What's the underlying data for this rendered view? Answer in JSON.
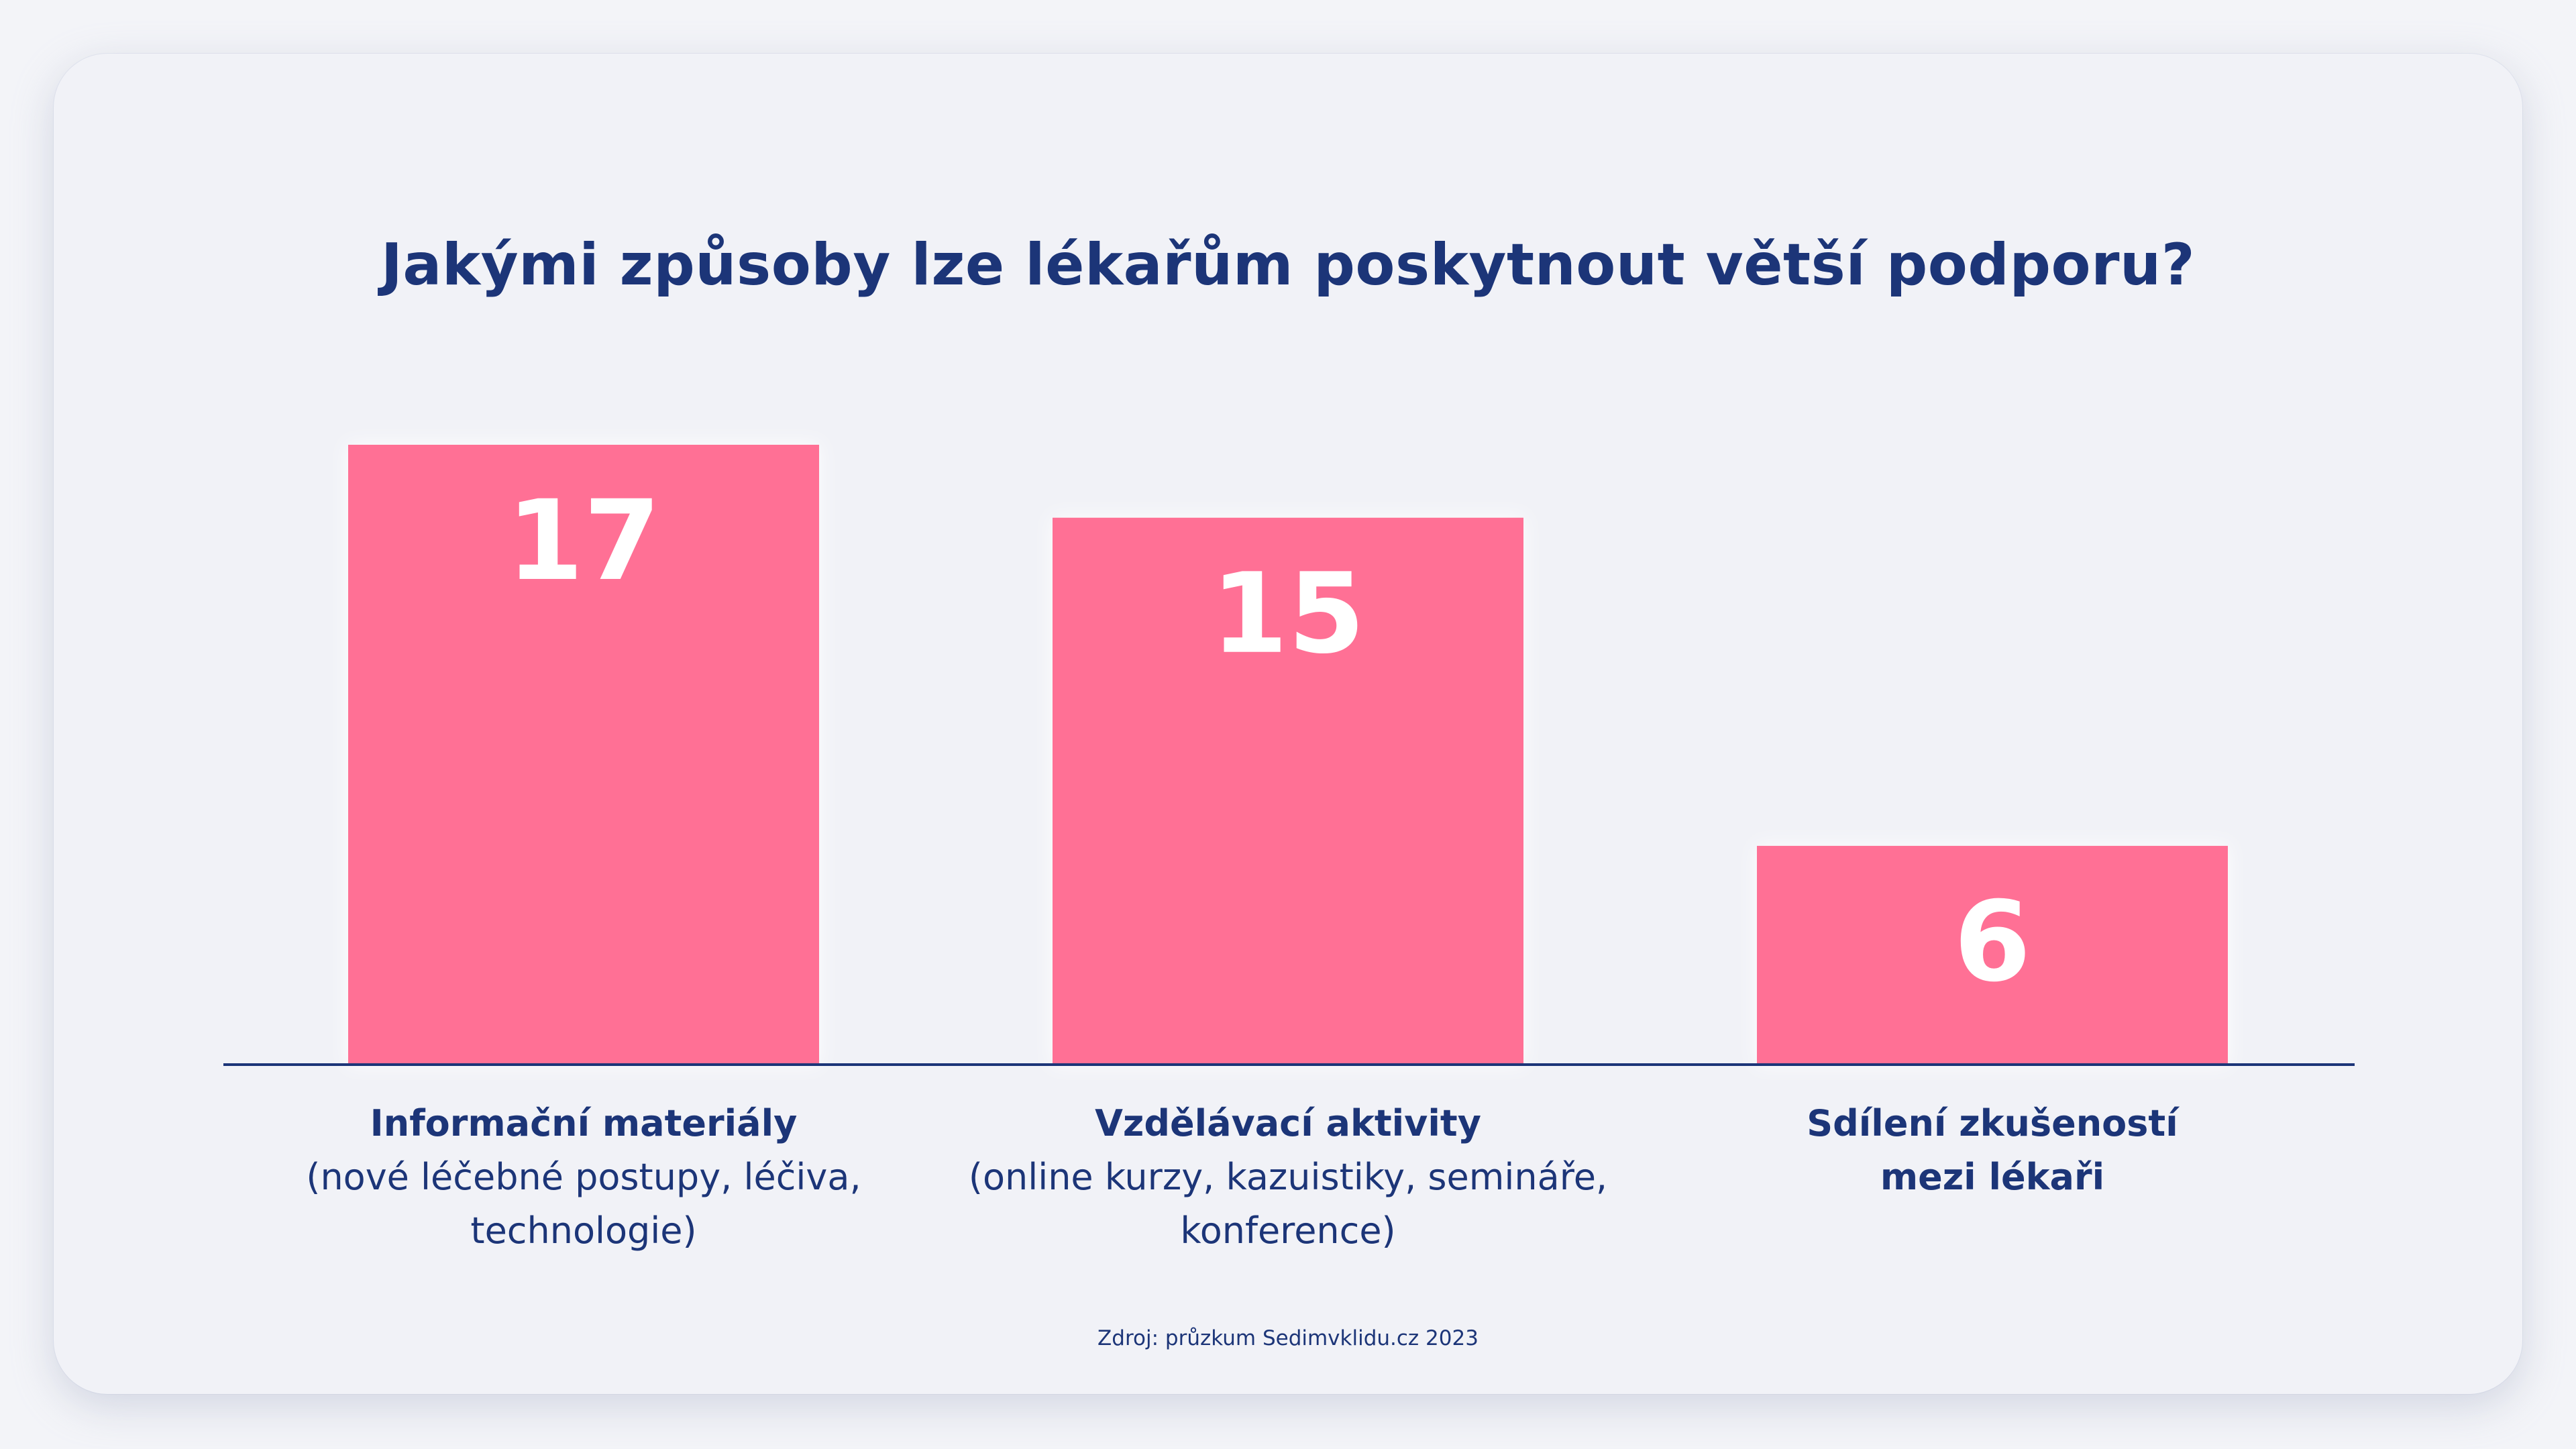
{
  "chart_data": {
    "type": "bar",
    "title": "Jakými způsoby lze lékařům poskytnout větší podporu?",
    "categories": [
      "Informační materiály (nové léčebné postupy, léčiva, technologie)",
      "Vzdělávací aktivity (online kurzy, kazuistiky, semináře, konference)",
      "Sdílení zkušeností mezi lékaři"
    ],
    "category_lines": [
      {
        "bold": [
          "Informační materiály"
        ],
        "regular": [
          "(nové léčebné postupy, léčiva,",
          "technologie)"
        ]
      },
      {
        "bold": [
          "Vzdělávací aktivity"
        ],
        "regular": [
          "(online kurzy, kazuistiky, semináře,",
          "konference)"
        ]
      },
      {
        "bold": [
          "Sdílení zkušeností",
          "mezi lékaři"
        ],
        "regular": []
      }
    ],
    "values": [
      17,
      15,
      6
    ],
    "ylim": [
      0,
      17
    ],
    "grid": false,
    "legend": "none",
    "xlabel": "",
    "ylabel": "",
    "bar_color": "#ff7095",
    "axis_color": "#1c3578"
  },
  "source": "Zdroj: průzkum Sedimvklidu.cz 2023",
  "colors": {
    "accent": "#ff7095",
    "text": "#1c3578",
    "background": "#f1f2f7"
  }
}
